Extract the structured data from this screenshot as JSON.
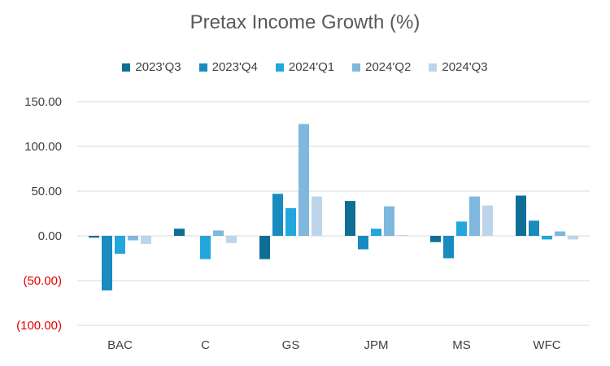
{
  "chart_data": {
    "type": "bar",
    "title": "Pretax Income Growth (%)",
    "categories": [
      "BAC",
      "C",
      "GS",
      "JPM",
      "MS",
      "WFC"
    ],
    "series": [
      {
        "name": "2023'Q3",
        "color": "#0e6e96",
        "values": [
          -2,
          8,
          -26,
          39,
          -7,
          45
        ]
      },
      {
        "name": "2023'Q4",
        "color": "#1a8bbf",
        "values": [
          -61,
          0,
          47,
          -15,
          -25,
          17
        ]
      },
      {
        "name": "2024'Q1",
        "color": "#22a7dd",
        "values": [
          -20,
          -26,
          31,
          8,
          16,
          -4
        ]
      },
      {
        "name": "2024'Q2",
        "color": "#80b7dc",
        "values": [
          -5,
          6,
          125,
          33,
          44,
          5
        ]
      },
      {
        "name": "2024'Q3",
        "color": "#bcd5ea",
        "values": [
          -9,
          -8,
          44,
          1,
          34,
          -4
        ]
      }
    ],
    "y_ticks": [
      {
        "value": 150,
        "label": "150.00",
        "color": "#404040"
      },
      {
        "value": 100,
        "label": "100.00",
        "color": "#404040"
      },
      {
        "value": 50,
        "label": "50.00",
        "color": "#404040"
      },
      {
        "value": 0,
        "label": "0.00",
        "color": "#404040"
      },
      {
        "value": -50,
        "label": "(50.00)",
        "color": "#e00000"
      },
      {
        "value": -100,
        "label": "(100.00)",
        "color": "#e00000"
      }
    ],
    "ylim": [
      -100,
      150
    ],
    "legend_position": "top",
    "grid": true
  }
}
